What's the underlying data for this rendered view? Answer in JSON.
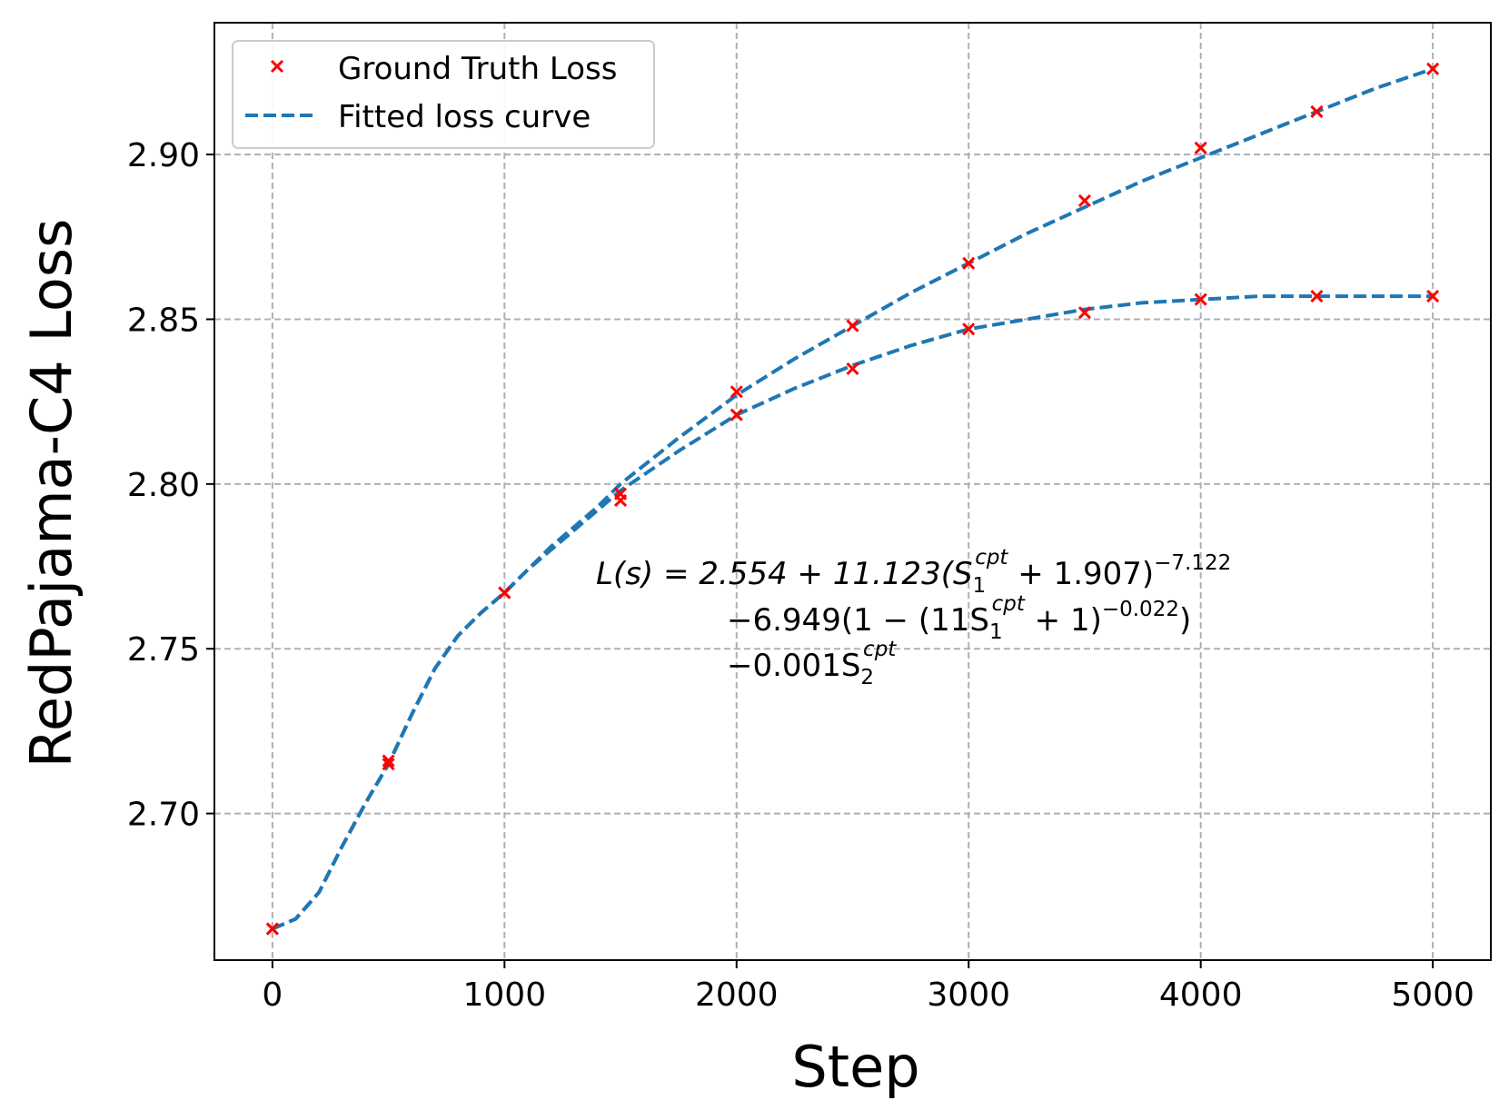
{
  "chart_data": {
    "type": "line",
    "title": "",
    "xlabel": "Step",
    "ylabel": "RedPajama-C4 Loss",
    "xlim": [
      -250,
      5250
    ],
    "ylim": [
      2.6555,
      2.94
    ],
    "grid": true,
    "legend_position": "top-left",
    "x_ticks": [
      0,
      1000,
      2000,
      3000,
      4000,
      5000
    ],
    "x_tick_labels": [
      "0",
      "1000",
      "2000",
      "3000",
      "4000",
      "5000"
    ],
    "y_ticks": [
      2.7,
      2.75,
      2.8,
      2.85,
      2.9
    ],
    "y_tick_labels": [
      "2.70",
      "2.75",
      "2.80",
      "2.85",
      "2.90"
    ],
    "legend": [
      {
        "label": "Ground Truth Loss",
        "marker": "x",
        "color": "#ff0000"
      },
      {
        "label": "Fitted loss curve",
        "style": "dashed",
        "color": "#1f77b4"
      }
    ],
    "series": [
      {
        "name": "Ground Truth Loss (run A)",
        "kind": "markers",
        "color": "#ff0000",
        "x": [
          0,
          500,
          1000,
          1500,
          2000,
          2500,
          3000,
          3500,
          4000,
          4500,
          5000
        ],
        "y": [
          2.665,
          2.716,
          2.767,
          2.797,
          2.828,
          2.848,
          2.867,
          2.886,
          2.902,
          2.913,
          2.926
        ]
      },
      {
        "name": "Ground Truth Loss (run B)",
        "kind": "markers",
        "color": "#ff0000",
        "x": [
          0,
          500,
          1000,
          1500,
          2000,
          2500,
          3000,
          3500,
          4000,
          4500,
          5000
        ],
        "y": [
          2.665,
          2.715,
          2.767,
          2.795,
          2.821,
          2.835,
          2.847,
          2.852,
          2.856,
          2.857,
          2.857
        ]
      },
      {
        "name": "Fitted loss curve (run A)",
        "kind": "dashed",
        "color": "#1f77b4",
        "x": [
          0,
          100,
          200,
          300,
          400,
          500,
          600,
          700,
          800,
          900,
          1000,
          1100,
          1200,
          1300,
          1400,
          1500,
          1750,
          2000,
          2250,
          2500,
          2750,
          3000,
          3250,
          3500,
          3750,
          4000,
          4250,
          4500,
          4750,
          5000
        ],
        "y": [
          2.665,
          2.668,
          2.676,
          2.69,
          2.703,
          2.715,
          2.73,
          2.744,
          2.754,
          2.761,
          2.767,
          2.774,
          2.781,
          2.787,
          2.793,
          2.8,
          2.814,
          2.827,
          2.838,
          2.848,
          2.858,
          2.867,
          2.876,
          2.884,
          2.892,
          2.899,
          2.906,
          2.913,
          2.92,
          2.926
        ]
      },
      {
        "name": "Fitted loss curve (run B)",
        "kind": "dashed",
        "color": "#1f77b4",
        "x": [
          0,
          100,
          200,
          300,
          400,
          500,
          600,
          700,
          800,
          900,
          1000,
          1100,
          1200,
          1300,
          1400,
          1500,
          1750,
          2000,
          2250,
          2500,
          2750,
          3000,
          3250,
          3500,
          3750,
          4000,
          4250,
          4500,
          4750,
          5000
        ],
        "y": [
          2.665,
          2.668,
          2.676,
          2.69,
          2.703,
          2.715,
          2.73,
          2.744,
          2.754,
          2.761,
          2.767,
          2.774,
          2.78,
          2.786,
          2.792,
          2.798,
          2.81,
          2.821,
          2.829,
          2.836,
          2.842,
          2.847,
          2.85,
          2.853,
          2.855,
          2.856,
          2.857,
          2.857,
          2.857,
          2.857
        ]
      }
    ],
    "annotation": {
      "line1": {
        "lhs": "L(s) = 2.554 + 11.123(S",
        "sub1": "1",
        "sup1": "cpt",
        "rest": " + 1.907)",
        "exp": "−7.122"
      },
      "line2": {
        "pre": "−6.949(1 − (11S",
        "sub1": "1",
        "sup1": "cpt",
        "rest": " + 1)",
        "exp": "−0.022",
        "post": ")"
      },
      "line3": {
        "pre": "−0.001S",
        "sub1": "2",
        "sup1": "cpt"
      }
    }
  }
}
